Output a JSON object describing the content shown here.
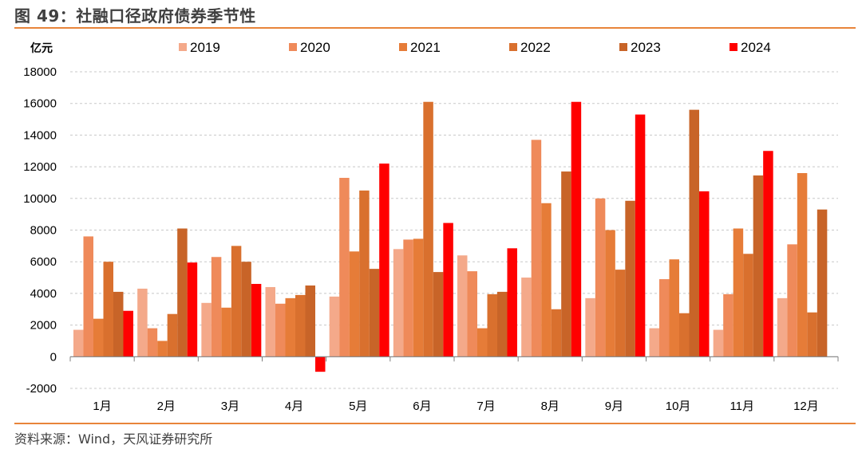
{
  "header": {
    "title": "图 49：社融口径政府债券季节性",
    "source": "资料来源：Wind，天风证券研究所"
  },
  "chart_data": {
    "type": "bar",
    "title": "社融口径政府债券季节性",
    "ylabel": "亿元",
    "xlabel": "",
    "ylim": [
      -2000,
      18000
    ],
    "ytick_step": 2000,
    "grid": true,
    "legend_position": "top",
    "categories": [
      "1月",
      "2月",
      "3月",
      "4月",
      "5月",
      "6月",
      "7月",
      "8月",
      "9月",
      "10月",
      "11月",
      "12月"
    ],
    "series": [
      {
        "name": "2019",
        "color": "#f4a98a",
        "values": [
          1700,
          4300,
          3400,
          4400,
          3800,
          6800,
          6400,
          5000,
          3700,
          1800,
          1700,
          3700
        ]
      },
      {
        "name": "2020",
        "color": "#ef8a5a",
        "values": [
          7600,
          1800,
          6300,
          3350,
          11300,
          7400,
          5400,
          13700,
          10000,
          4900,
          3950,
          7100
        ]
      },
      {
        "name": "2021",
        "color": "#e67c38",
        "values": [
          2400,
          1000,
          3100,
          3700,
          6650,
          7450,
          1800,
          9700,
          8000,
          6150,
          8100,
          11600
        ]
      },
      {
        "name": "2022",
        "color": "#d9702e",
        "values": [
          6000,
          2700,
          7000,
          3900,
          10500,
          16100,
          3950,
          3000,
          5500,
          2750,
          6500,
          2800
        ]
      },
      {
        "name": "2023",
        "color": "#c86428",
        "values": [
          4100,
          8100,
          6000,
          4500,
          5550,
          5350,
          4100,
          11700,
          9850,
          15600,
          11450,
          9300
        ]
      },
      {
        "name": "2024",
        "color": "#ff0000",
        "values": [
          2900,
          5950,
          4600,
          -950,
          12200,
          8450,
          6850,
          16100,
          15300,
          10450,
          13000,
          null
        ]
      }
    ]
  }
}
